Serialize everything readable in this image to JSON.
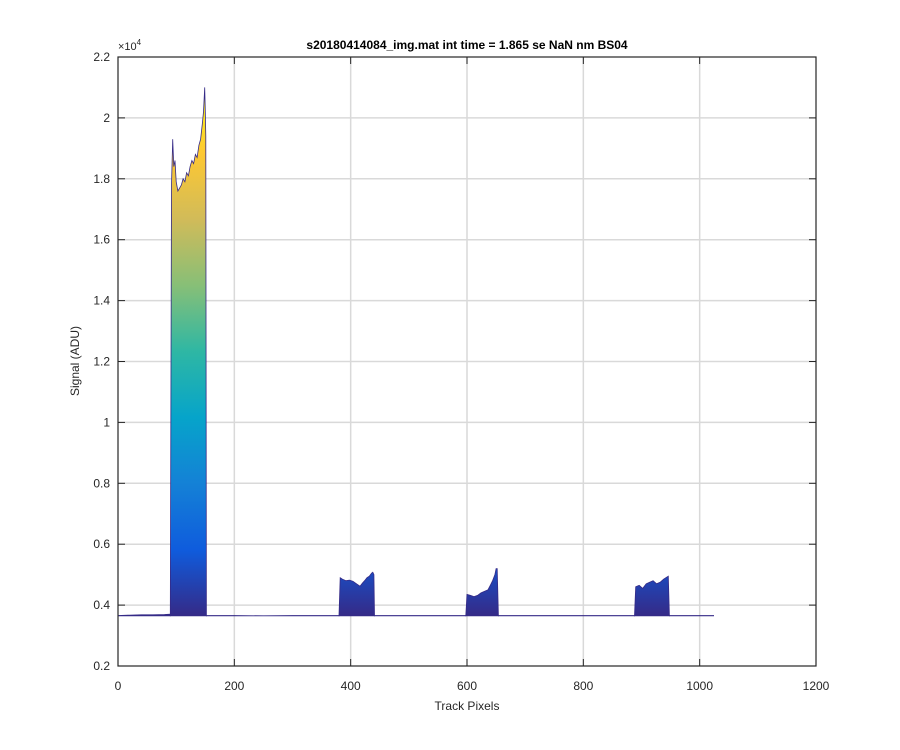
{
  "chart_data": {
    "type": "area",
    "title": "s20180414084_img.mat int time = 1.865 se  NaN nm BS04",
    "xlabel": "Track Pixels",
    "ylabel": "Signal (ADU)",
    "xlim": [
      0,
      1200
    ],
    "ylim": [
      0.2,
      2.2
    ],
    "y_exponent_label": "×10",
    "y_exponent": "4",
    "x_ticks": [
      0,
      200,
      400,
      600,
      800,
      1000,
      1200
    ],
    "y_ticks": [
      0.2,
      0.4,
      0.6,
      0.8,
      1,
      1.2,
      1.4,
      1.6,
      1.8,
      2,
      2.2
    ],
    "x_tick_labels": [
      "0",
      "200",
      "400",
      "600",
      "800",
      "1000",
      "1200"
    ],
    "y_tick_labels": [
      "0.2",
      "0.4",
      "0.6",
      "0.8",
      "1",
      "1.2",
      "1.4",
      "1.6",
      "1.8",
      "2",
      "2.2"
    ],
    "grid": true,
    "colormap": [
      "#352a87",
      "#0f5cdd",
      "#1481d6",
      "#06a4ca",
      "#2eb7a4",
      "#87bf77",
      "#d1bb59",
      "#fec832",
      "#f9fb0e"
    ],
    "baseline": 0.365,
    "series": [
      {
        "x": [
          1,
          20,
          40,
          60,
          80,
          90
        ],
        "y": [
          0.366,
          0.367,
          0.368,
          0.368,
          0.369,
          0.37
        ]
      },
      {
        "x": [
          90,
          92,
          94,
          96,
          98,
          100,
          103,
          106,
          109,
          112,
          115,
          118,
          121,
          124,
          127,
          130,
          133,
          136,
          139,
          142,
          145,
          147,
          149,
          150,
          151,
          152
        ],
        "y": [
          0.37,
          1.78,
          1.93,
          1.84,
          1.86,
          1.79,
          1.76,
          1.77,
          1.78,
          1.8,
          1.79,
          1.82,
          1.81,
          1.84,
          1.86,
          1.85,
          1.88,
          1.87,
          1.91,
          1.93,
          1.98,
          2.02,
          2.1,
          2.02,
          1.94,
          0.37
        ]
      },
      {
        "x": [
          152,
          200,
          250,
          300,
          350,
          380
        ],
        "y": [
          0.366,
          0.366,
          0.365,
          0.366,
          0.366,
          0.366
        ]
      },
      {
        "x": [
          380,
          382,
          386,
          392,
          398,
          404,
          410,
          416,
          420,
          424,
          428,
          432,
          436,
          438,
          440,
          441
        ],
        "y": [
          0.366,
          0.49,
          0.485,
          0.48,
          0.482,
          0.478,
          0.47,
          0.462,
          0.472,
          0.48,
          0.49,
          0.495,
          0.505,
          0.508,
          0.5,
          0.366
        ]
      },
      {
        "x": [
          441,
          480,
          520,
          560,
          598
        ],
        "y": [
          0.366,
          0.366,
          0.366,
          0.366,
          0.366
        ]
      },
      {
        "x": [
          598,
          600,
          606,
          612,
          618,
          624,
          630,
          636,
          640,
          644,
          648,
          650,
          652,
          654
        ],
        "y": [
          0.366,
          0.435,
          0.432,
          0.428,
          0.432,
          0.44,
          0.445,
          0.45,
          0.465,
          0.48,
          0.5,
          0.52,
          0.52,
          0.366
        ]
      },
      {
        "x": [
          654,
          700,
          750,
          800,
          850,
          888
        ],
        "y": [
          0.366,
          0.366,
          0.366,
          0.366,
          0.366,
          0.366
        ]
      },
      {
        "x": [
          888,
          890,
          896,
          902,
          908,
          914,
          920,
          926,
          932,
          938,
          942,
          946,
          948
        ],
        "y": [
          0.366,
          0.46,
          0.465,
          0.455,
          0.47,
          0.475,
          0.48,
          0.47,
          0.475,
          0.485,
          0.49,
          0.495,
          0.366
        ]
      },
      {
        "x": [
          948,
          980,
          1000,
          1024
        ],
        "y": [
          0.366,
          0.366,
          0.366,
          0.366
        ]
      }
    ]
  }
}
